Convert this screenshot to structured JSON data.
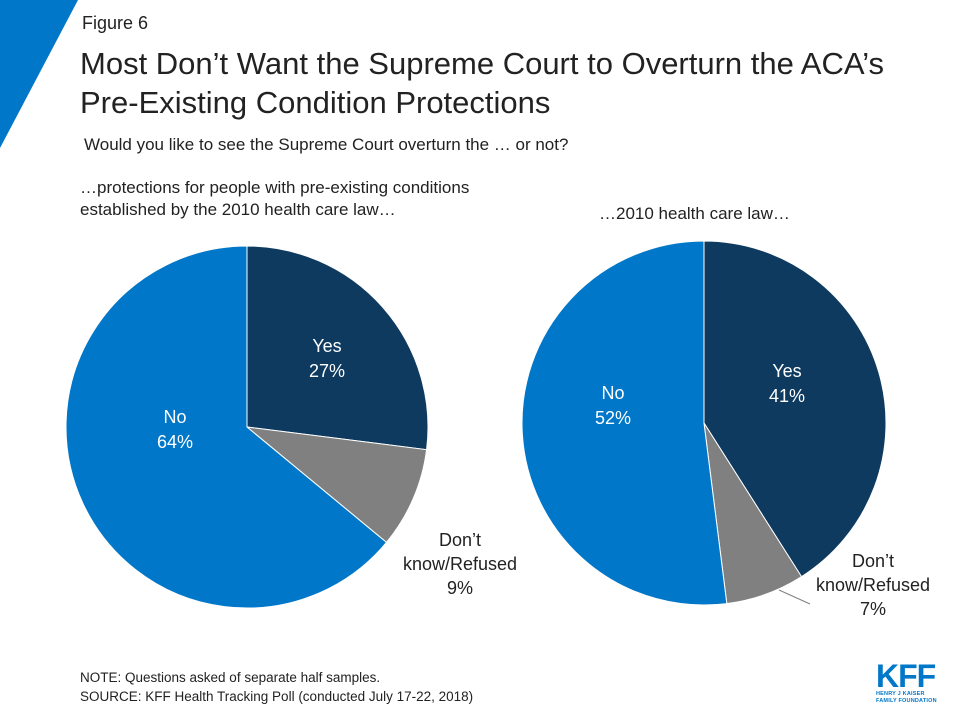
{
  "figure_label": "Figure 6",
  "title": "Most Don’t Want the Supreme Court to Overturn the ACA’s Pre-Existing Condition Protections",
  "subtitle": "Would you like to see the Supreme Court overturn the … or not?",
  "colors": {
    "yes": "#0e3a5f",
    "no": "#0077c8",
    "dk": "#808080",
    "accent": "#0077c8"
  },
  "chart_data": [
    {
      "type": "pie",
      "title": "…protections for people with pre-existing conditions established by the 2010 health care law…",
      "slices": [
        {
          "label": "Yes",
          "value": 27,
          "display": "27%"
        },
        {
          "label": "Don’t know/Refused",
          "value": 9,
          "display": "9%"
        },
        {
          "label": "No",
          "value": 64,
          "display": "64%"
        }
      ]
    },
    {
      "type": "pie",
      "title": "…2010 health care law…",
      "slices": [
        {
          "label": "Yes",
          "value": 41,
          "display": "41%"
        },
        {
          "label": "Don’t know/Refused",
          "value": 7,
          "display": "7%"
        },
        {
          "label": "No",
          "value": 52,
          "display": "52%"
        }
      ]
    }
  ],
  "labels": {
    "dk_line1": "Don’t",
    "dk_line2": "know/Refused"
  },
  "notes": {
    "note": "NOTE: Questions asked of separate half samples.",
    "source": "SOURCE: KFF Health Tracking Poll (conducted July 17-22, 2018)"
  },
  "logo": {
    "text": "KFF",
    "line1": "HENRY J KAISER",
    "line2": "FAMILY FOUNDATION"
  }
}
